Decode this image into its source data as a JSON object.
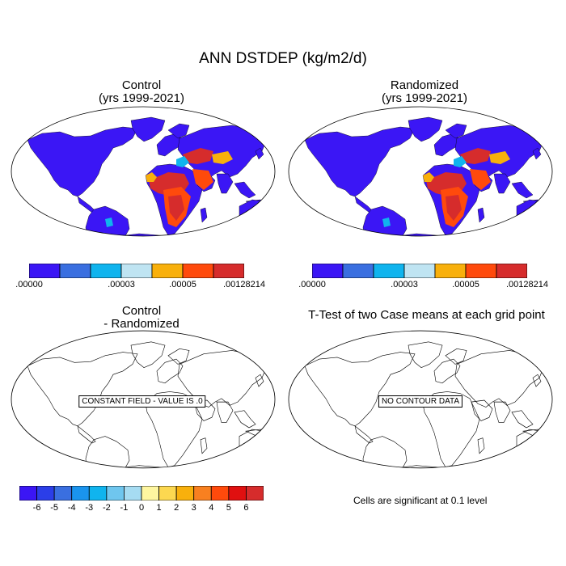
{
  "title": "ANN DSTDEP (kg/m2/d)",
  "panels": [
    {
      "id": "control",
      "title_line1": "Control",
      "title_line2": "(yrs 1999-2021)"
    },
    {
      "id": "randomized",
      "title_line1": "Randomized",
      "title_line2": "(yrs 1999-2021)"
    },
    {
      "id": "diff",
      "title_line1": "Control",
      "title_line2": "- Randomized",
      "notice": "CONSTANT FIELD - VALUE IS .0"
    },
    {
      "id": "ttest",
      "title_line1": "T-Test of two Case means at each grid point",
      "notice": "NO CONTOUR DATA"
    }
  ],
  "colorbar_top": {
    "colors": [
      "#3b16f5",
      "#3a6fe0",
      "#10b4ee",
      "#bfe4f2",
      "#f8b00c",
      "#ff4a0c",
      "#d62c2c"
    ],
    "labels": [
      ".00000",
      ".00003",
      ".00005",
      ".00128214"
    ]
  },
  "colorbar_bottom": {
    "colors": [
      "#3b16f5",
      "#2b3ee8",
      "#3a6fe0",
      "#1a94ee",
      "#10b4ee",
      "#6fc6ee",
      "#a6dcf2",
      "#fef6a0",
      "#fcd850",
      "#f8b00c",
      "#f88020",
      "#ff4a0c",
      "#e01010",
      "#d62c2c"
    ],
    "labels": [
      "-6",
      "-5",
      "-4",
      "-3",
      "-2",
      "-1",
      "0",
      "1",
      "2",
      "3",
      "4",
      "5",
      "6"
    ]
  },
  "footnote": "Cells are significant at 0.1 level",
  "colors": {
    "ocean": "#ffffff",
    "land": "#3b16f5",
    "coast": "#000000"
  }
}
